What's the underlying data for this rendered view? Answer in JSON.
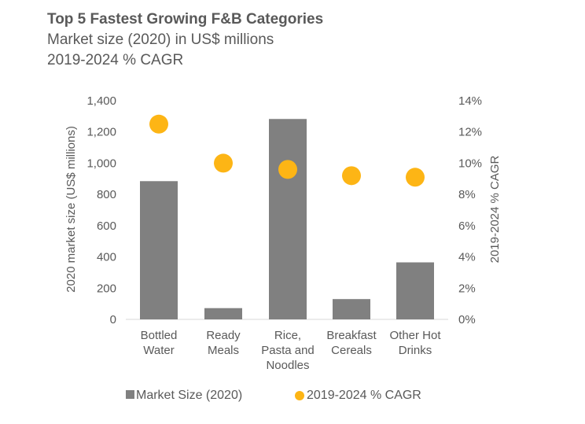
{
  "chart_data": {
    "type": "bar",
    "title": "Top 5 Fastest Growing F&B Categories",
    "subtitle_lines": [
      "Market size (2020) in US$ millions",
      "2019-2024 % CAGR"
    ],
    "categories": [
      [
        "Bottled",
        "Water"
      ],
      [
        "Ready",
        "Meals"
      ],
      [
        "Rice,",
        "Pasta and",
        "Noodles"
      ],
      [
        "Breakfast",
        "Cereals"
      ],
      [
        "Other Hot",
        "Drinks"
      ]
    ],
    "series": [
      {
        "name": "Market Size (2020)",
        "type": "bar",
        "axis": "left",
        "color": "#808080",
        "values": [
          885,
          72,
          1283,
          130,
          365
        ]
      },
      {
        "name": "2019-2024 % CAGR",
        "type": "scatter",
        "axis": "right",
        "color": "#FDB515",
        "values": [
          12.5,
          10.0,
          9.6,
          9.2,
          9.1
        ]
      }
    ],
    "ylabel": "2020 market size (US$ millions)",
    "y2label": "2019-2024 % CAGR",
    "ylim": [
      0,
      1400
    ],
    "y2lim": [
      0,
      14
    ],
    "yticks": [
      "0",
      "200",
      "400",
      "600",
      "800",
      "1,000",
      "1,200",
      "1,400"
    ],
    "y2ticks": [
      "0%",
      "2%",
      "4%",
      "6%",
      "8%",
      "10%",
      "12%",
      "14%"
    ],
    "legend": {
      "placement": "bottom",
      "entries": [
        "Market Size (2020)",
        "2019-2024 % CAGR"
      ]
    },
    "grid": false
  }
}
